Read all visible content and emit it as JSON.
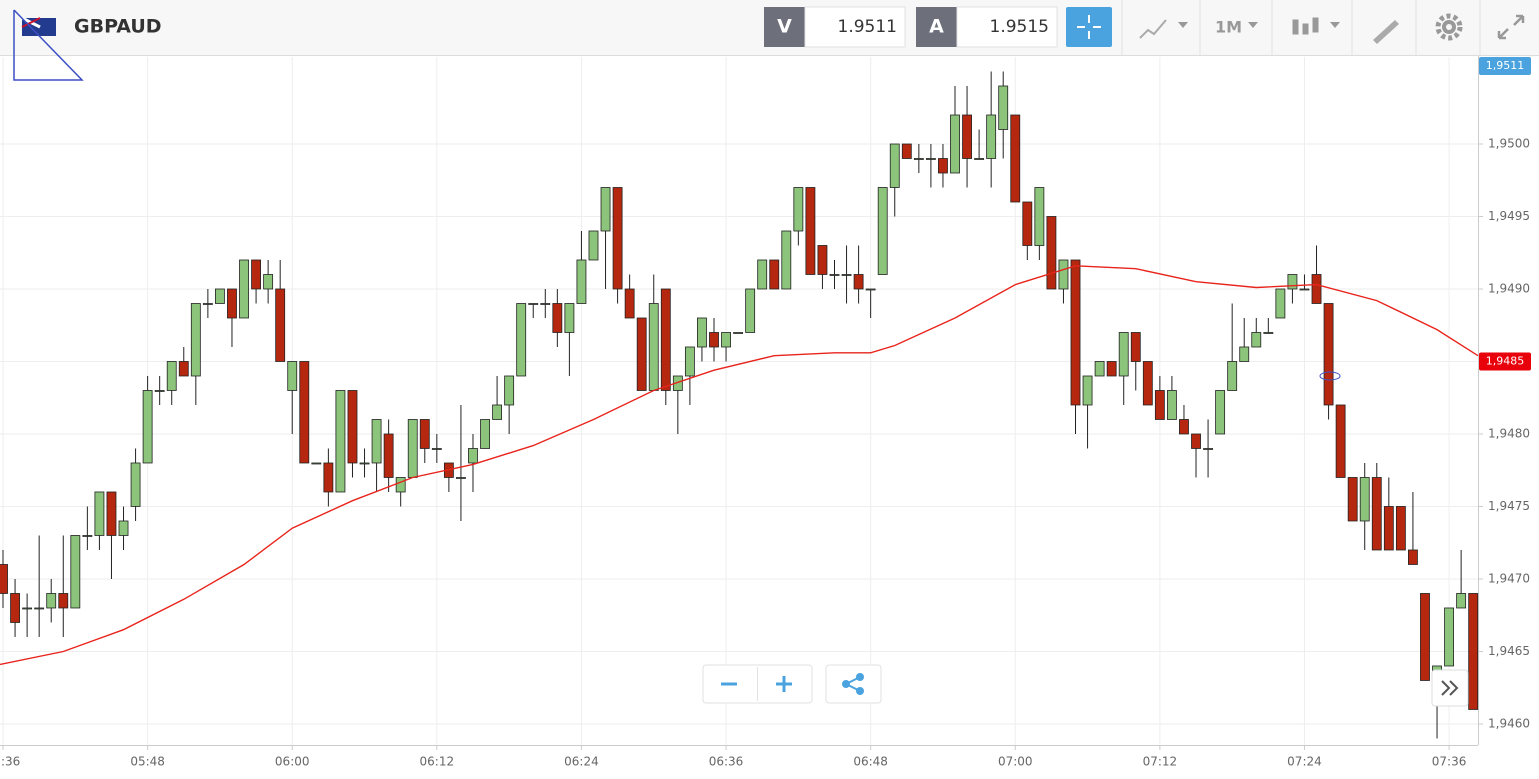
{
  "header": {
    "symbol": "GBPAUD",
    "bid_label": "V",
    "bid": "1.9511",
    "ask_label": "A",
    "ask": "1.9515",
    "timeframe": "1M"
  },
  "chart_data": {
    "type": "candlestick",
    "up_color": "#8bc47a",
    "down_color": "#b5280f",
    "grid": true,
    "xlim": [
      335.75,
      458.4
    ],
    "xticks": [
      {
        "value": 336,
        "label": "05:36"
      },
      {
        "value": 348,
        "label": "05:48"
      },
      {
        "value": 360,
        "label": "06:00"
      },
      {
        "value": 372,
        "label": "06:12"
      },
      {
        "value": 384,
        "label": "06:24"
      },
      {
        "value": 396,
        "label": "06:36"
      },
      {
        "value": 408,
        "label": "06:48"
      },
      {
        "value": 420,
        "label": "07:00"
      },
      {
        "value": 432,
        "label": "07:12"
      },
      {
        "value": 444,
        "label": "07:24"
      },
      {
        "value": 456,
        "label": "07:36"
      }
    ],
    "ylim": [
      1.945855,
      1.9506
    ],
    "yticks": [
      {
        "value": 1.946,
        "label": "1,9460"
      },
      {
        "value": 1.9465,
        "label": "1,9465"
      },
      {
        "value": 1.947,
        "label": "1,9470"
      },
      {
        "value": 1.9475,
        "label": "1,9475"
      },
      {
        "value": 1.948,
        "label": "1,9480"
      },
      {
        "value": 1.9485,
        "label": "1,9485"
      },
      {
        "value": 1.949,
        "label": "1,9490"
      },
      {
        "value": 1.9495,
        "label": "1,9495"
      },
      {
        "value": 1.95,
        "label": "1,9500"
      }
    ],
    "price_labels": [
      {
        "value": 1.9511,
        "label": "1,9511",
        "color": "#4aa3df"
      },
      {
        "value": 1.9485,
        "label": "1,9485",
        "color": "#e8000b"
      }
    ],
    "x": [
      336,
      337,
      338,
      339,
      340,
      341,
      342,
      343,
      344,
      345,
      346,
      347,
      348,
      349,
      350,
      351,
      352,
      353,
      354,
      355,
      356,
      357,
      358,
      359,
      360,
      361,
      362,
      363,
      364,
      365,
      366,
      367,
      368,
      369,
      370,
      371,
      372,
      373,
      374,
      375,
      376,
      377,
      378,
      379,
      380,
      381,
      382,
      383,
      384,
      385,
      386,
      387,
      388,
      389,
      390,
      391,
      392,
      393,
      394,
      395,
      396,
      397,
      398,
      399,
      400,
      401,
      402,
      403,
      404,
      405,
      406,
      407,
      408,
      409,
      410,
      411,
      412,
      413,
      414,
      415,
      416,
      417,
      418,
      419,
      420,
      421,
      422,
      423,
      424,
      425,
      426,
      427,
      428,
      429,
      430,
      431,
      432,
      433,
      434,
      435,
      436,
      437,
      438,
      439,
      440,
      441,
      442,
      443,
      444,
      445,
      446,
      447,
      448,
      449,
      450,
      451,
      452,
      453,
      454,
      455,
      456,
      457,
      458
    ],
    "open": [
      1.9471,
      1.9469,
      1.9468,
      1.9468,
      1.9468,
      1.9469,
      1.9468,
      1.9473,
      1.9473,
      1.9476,
      1.9473,
      1.9475,
      1.9478,
      1.9483,
      1.9483,
      1.9485,
      1.9484,
      1.9489,
      1.9489,
      1.949,
      1.9488,
      1.9492,
      1.949,
      1.949,
      1.9483,
      1.9485,
      1.9478,
      1.9478,
      1.9476,
      1.9483,
      1.9478,
      1.9478,
      1.948,
      1.9476,
      1.9477,
      1.9481,
      1.9479,
      1.9478,
      1.9477,
      1.9478,
      1.9479,
      1.9481,
      1.9482,
      1.9484,
      1.9489,
      1.9489,
      1.9489,
      1.9487,
      1.9489,
      1.9492,
      1.9494,
      1.9497,
      1.949,
      1.9488,
      1.9483,
      1.949,
      1.9483,
      1.9484,
      1.9486,
      1.9487,
      1.9486,
      1.9487,
      1.9487,
      1.949,
      1.9492,
      1.949,
      1.9494,
      1.9497,
      1.9493,
      1.9491,
      1.9491,
      1.9491,
      1.949,
      1.9491,
      1.9497,
      1.95,
      1.9499,
      1.9499,
      1.9499,
      1.9498,
      1.9502,
      1.9499,
      1.9499,
      1.9501,
      1.9502,
      1.9496,
      1.9493,
      1.9495,
      1.949,
      1.9492,
      1.9482,
      1.9484,
      1.9485,
      1.9484,
      1.9487,
      1.9485,
      1.9483,
      1.9481,
      1.9481,
      1.948,
      1.9479,
      1.948,
      1.9483,
      1.9485,
      1.9486,
      1.9487,
      1.9488,
      1.949,
      1.949,
      1.9491,
      1.9489,
      1.9482,
      1.9477,
      1.9474,
      1.9477,
      1.9475,
      1.9475,
      1.9472,
      1.9469,
      1.9463,
      1.9464,
      1.9468,
      1.9469
    ],
    "high": [
      1.9472,
      1.947,
      1.9469,
      1.9473,
      1.947,
      1.9473,
      1.9473,
      1.9475,
      1.9476,
      1.9476,
      1.9475,
      1.9479,
      1.9484,
      1.9484,
      1.9485,
      1.9486,
      1.9489,
      1.949,
      1.949,
      1.949,
      1.9492,
      1.9492,
      1.9492,
      1.9492,
      1.9485,
      1.9485,
      1.9478,
      1.9479,
      1.9483,
      1.9483,
      1.9479,
      1.9481,
      1.9481,
      1.9477,
      1.9481,
      1.9481,
      1.948,
      1.9478,
      1.9482,
      1.948,
      1.9481,
      1.9484,
      1.9484,
      1.9489,
      1.9489,
      1.949,
      1.949,
      1.9489,
      1.9494,
      1.9494,
      1.9497,
      1.9497,
      1.9491,
      1.9488,
      1.9491,
      1.949,
      1.9484,
      1.9486,
      1.9488,
      1.9488,
      1.9487,
      1.9487,
      1.949,
      1.9492,
      1.9492,
      1.9494,
      1.9497,
      1.9497,
      1.9493,
      1.9492,
      1.9493,
      1.9493,
      1.949,
      1.9497,
      1.95,
      1.95,
      1.95,
      1.95,
      1.95,
      1.9504,
      1.9504,
      1.9501,
      1.9505,
      1.9505,
      1.9502,
      1.9496,
      1.9497,
      1.9495,
      1.9492,
      1.9492,
      1.9484,
      1.9485,
      1.9485,
      1.9487,
      1.9487,
      1.9485,
      1.9484,
      1.9484,
      1.9482,
      1.948,
      1.9481,
      1.9483,
      1.9489,
      1.9488,
      1.9488,
      1.9488,
      1.949,
      1.9491,
      1.9491,
      1.9493,
      1.9489,
      1.9482,
      1.9477,
      1.9478,
      1.9478,
      1.9477,
      1.9475,
      1.9476,
      1.9469,
      1.9464,
      1.9468,
      1.9472,
      1.9469
    ],
    "low": [
      1.9468,
      1.9466,
      1.9466,
      1.9466,
      1.9467,
      1.9466,
      1.9468,
      1.9472,
      1.9472,
      1.947,
      1.9472,
      1.9474,
      1.9478,
      1.9482,
      1.9482,
      1.9484,
      1.9482,
      1.9488,
      1.9489,
      1.9486,
      1.9488,
      1.9489,
      1.9489,
      1.9485,
      1.948,
      1.9478,
      1.9478,
      1.9475,
      1.9476,
      1.9477,
      1.9477,
      1.9476,
      1.9476,
      1.9475,
      1.9477,
      1.9478,
      1.9478,
      1.9476,
      1.9474,
      1.9476,
      1.9479,
      1.9481,
      1.948,
      1.9484,
      1.9488,
      1.9488,
      1.9486,
      1.9484,
      1.9489,
      1.9492,
      1.949,
      1.9489,
      1.9488,
      1.9483,
      1.9483,
      1.9482,
      1.948,
      1.9482,
      1.9485,
      1.9485,
      1.9485,
      1.9487,
      1.9487,
      1.949,
      1.949,
      1.949,
      1.9493,
      1.9491,
      1.949,
      1.949,
      1.9489,
      1.9489,
      1.9488,
      1.9491,
      1.9495,
      1.9499,
      1.9498,
      1.9497,
      1.9497,
      1.9498,
      1.9497,
      1.9499,
      1.9497,
      1.9499,
      1.9496,
      1.9492,
      1.9492,
      1.949,
      1.9489,
      1.948,
      1.9479,
      1.9484,
      1.9484,
      1.9482,
      1.9483,
      1.9482,
      1.9481,
      1.9481,
      1.948,
      1.9477,
      1.9477,
      1.948,
      1.9483,
      1.9485,
      1.9486,
      1.9487,
      1.9488,
      1.9489,
      1.949,
      1.9489,
      1.9481,
      1.9477,
      1.9474,
      1.9472,
      1.9472,
      1.9472,
      1.9472,
      1.9471,
      1.9463,
      1.9459,
      1.9464,
      1.9468,
      1.9461
    ],
    "close": [
      1.9469,
      1.9467,
      1.9468,
      1.9468,
      1.9469,
      1.9468,
      1.9473,
      1.9473,
      1.9476,
      1.9473,
      1.9474,
      1.9478,
      1.9483,
      1.9483,
      1.9485,
      1.9484,
      1.9489,
      1.9489,
      1.949,
      1.9488,
      1.9492,
      1.949,
      1.9491,
      1.9485,
      1.9485,
      1.9478,
      1.9478,
      1.9476,
      1.9483,
      1.9478,
      1.9478,
      1.9481,
      1.9477,
      1.9477,
      1.9481,
      1.9479,
      1.9479,
      1.9477,
      1.9477,
      1.9479,
      1.9481,
      1.9482,
      1.9484,
      1.9489,
      1.9489,
      1.9489,
      1.9487,
      1.9489,
      1.9492,
      1.9494,
      1.9497,
      1.949,
      1.9488,
      1.9483,
      1.9489,
      1.9483,
      1.9484,
      1.9486,
      1.9488,
      1.9486,
      1.9487,
      1.9487,
      1.949,
      1.9492,
      1.949,
      1.9494,
      1.9497,
      1.9491,
      1.9491,
      1.9491,
      1.9491,
      1.949,
      1.949,
      1.9497,
      1.95,
      1.9499,
      1.9499,
      1.9499,
      1.9498,
      1.9502,
      1.9499,
      1.9499,
      1.9502,
      1.9504,
      1.9496,
      1.9493,
      1.9497,
      1.949,
      1.9492,
      1.9482,
      1.9484,
      1.9485,
      1.9484,
      1.9487,
      1.9485,
      1.9482,
      1.9481,
      1.9483,
      1.948,
      1.9479,
      1.9479,
      1.9483,
      1.9485,
      1.9486,
      1.9487,
      1.9487,
      1.949,
      1.9491,
      1.949,
      1.9489,
      1.9482,
      1.9477,
      1.9474,
      1.9477,
      1.9472,
      1.9472,
      1.9472,
      1.9471,
      1.9463,
      1.9464,
      1.9468,
      1.9469,
      1.9461
    ],
    "ma": {
      "color": "#e8241c",
      "x": [
        335.75,
        341,
        346,
        351,
        356,
        360,
        365,
        370,
        375,
        380,
        385,
        390,
        395,
        400,
        405,
        408,
        410,
        415,
        420,
        425,
        430,
        435,
        440,
        445,
        450,
        455,
        458.4
      ],
      "values": [
        1.94641,
        1.9465,
        1.94665,
        1.94686,
        1.9471,
        1.94735,
        1.94754,
        1.9477,
        1.94779,
        1.94792,
        1.9481,
        1.9483,
        1.94844,
        1.94854,
        1.94856,
        1.94856,
        1.94861,
        1.9488,
        1.94903,
        1.94916,
        1.94914,
        1.94905,
        1.94901,
        1.94903,
        1.94892,
        1.94872,
        1.94854
      ]
    }
  }
}
